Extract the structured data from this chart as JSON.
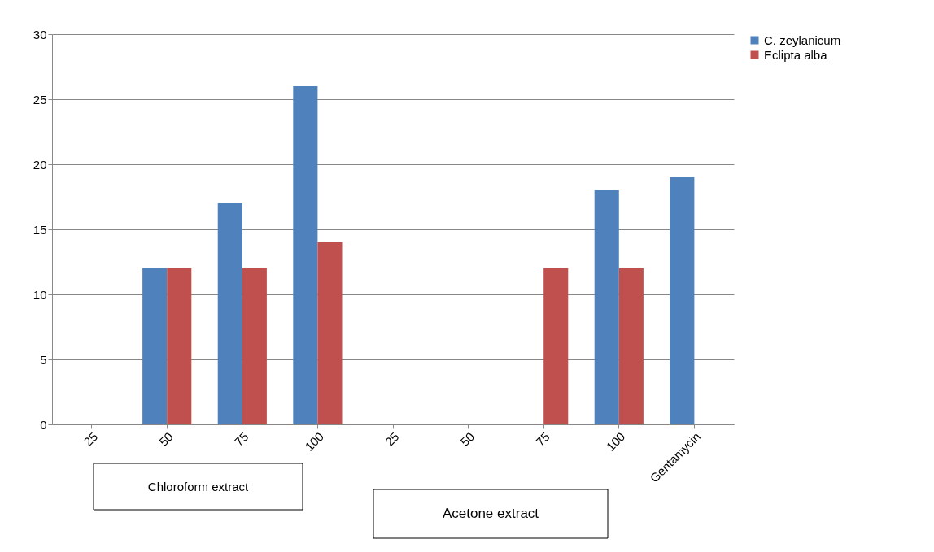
{
  "chart_data": {
    "type": "bar",
    "categories": [
      "25",
      "50",
      "75",
      "100",
      "25",
      "50",
      "75",
      "100",
      "Gentamycin"
    ],
    "series": [
      {
        "name": "C. zeylanicum",
        "color": "#4f81bd",
        "values": [
          0,
          12,
          17,
          26,
          0,
          0,
          0,
          18,
          19
        ]
      },
      {
        "name": "Eclipta alba",
        "color": "#c0504d",
        "values": [
          0,
          12,
          12,
          14,
          0,
          0,
          12,
          12,
          0
        ]
      }
    ],
    "ylim": [
      0,
      30
    ],
    "yticks": [
      0,
      5,
      10,
      15,
      20,
      25,
      30
    ],
    "grid": "y",
    "legend": "right",
    "annotations": [
      "Chloroform extract",
      "Acetone extract"
    ]
  }
}
